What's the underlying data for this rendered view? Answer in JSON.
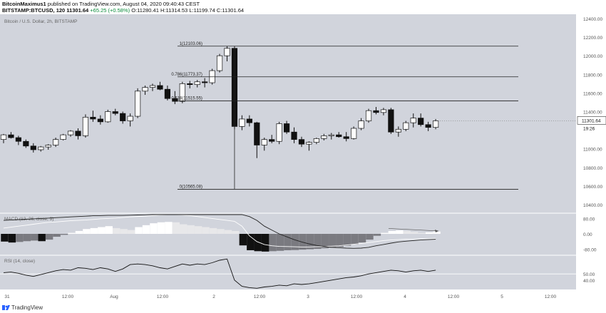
{
  "header": {
    "author": "BitcoinMaximus1",
    "published": "published on TradingView.com, August 04, 2020 09:40:43 CEST",
    "symbol": "BITSTAMP:BTCUSD, 120",
    "last": "11301.64",
    "change": "+65.25 (+0.58%)",
    "ohlc_o_label": "O:",
    "ohlc_o": "11280.41",
    "ohlc_h_label": "H:",
    "ohlc_h": "11314.53",
    "ohlc_l_label": "L:",
    "ohlc_l": "11199.74",
    "ohlc_c_label": "C:",
    "ohlc_c": "11301.64"
  },
  "footer": {
    "brand": "TradingView"
  },
  "chart_data": {
    "type": "candlestick",
    "legend_main": "Bitcoin / U.S. Dollar, 2h, BITSTAMP",
    "last_price_label": "11301.64",
    "countdown_label": "19:26",
    "price_axis": {
      "ticks": [
        "12400.00",
        "12200.00",
        "12000.00",
        "11800.00",
        "11600.00",
        "11400.00",
        "11000.00",
        "10800.00",
        "10600.00",
        "10400.00"
      ],
      "values": [
        12400,
        12200,
        12000,
        11800,
        11600,
        11400,
        11000,
        10800,
        10600,
        10400
      ]
    },
    "time_axis": {
      "ticks": [
        "31",
        "12:00",
        "Aug",
        "12:00",
        "2",
        "12:00",
        "3",
        "12:00",
        "4",
        "12:00",
        "5",
        "12:00"
      ]
    },
    "fib_levels": [
      {
        "label": "1(12103.06)",
        "value": 12103.06
      },
      {
        "label": "0.786(11773.37)",
        "value": 11773.37
      },
      {
        "label": "0.618(11515.55)",
        "value": 11515.55
      },
      {
        "label": "0(10565.08)",
        "value": 10565.08
      }
    ],
    "candles": [
      [
        11100,
        11160,
        11060,
        11150
      ],
      [
        11150,
        11180,
        11110,
        11120
      ],
      [
        11120,
        11140,
        11040,
        11080
      ],
      [
        11080,
        11100,
        11010,
        11030
      ],
      [
        11030,
        11060,
        10960,
        10990
      ],
      [
        10990,
        11030,
        10970,
        11020
      ],
      [
        11020,
        11050,
        10990,
        11040
      ],
      [
        11040,
        11120,
        11020,
        11100
      ],
      [
        11100,
        11160,
        11090,
        11150
      ],
      [
        11150,
        11200,
        11130,
        11190
      ],
      [
        11190,
        11220,
        11100,
        11140
      ],
      [
        11140,
        11370,
        11120,
        11340
      ],
      [
        11340,
        11410,
        11290,
        11320
      ],
      [
        11320,
        11360,
        11260,
        11290
      ],
      [
        11290,
        11420,
        11280,
        11400
      ],
      [
        11400,
        11430,
        11360,
        11380
      ],
      [
        11380,
        11400,
        11270,
        11300
      ],
      [
        11300,
        11380,
        11240,
        11350
      ],
      [
        11350,
        11650,
        11330,
        11620
      ],
      [
        11620,
        11680,
        11580,
        11660
      ],
      [
        11660,
        11700,
        11620,
        11680
      ],
      [
        11680,
        11720,
        11630,
        11640
      ],
      [
        11640,
        11680,
        11520,
        11540
      ],
      [
        11540,
        11620,
        11480,
        11510
      ],
      [
        11510,
        11720,
        11490,
        11700
      ],
      [
        11700,
        11730,
        11650,
        11690
      ],
      [
        11690,
        11740,
        11660,
        11720
      ],
      [
        11720,
        11760,
        11660,
        11710
      ],
      [
        11710,
        11860,
        11690,
        11840
      ],
      [
        11840,
        12020,
        11820,
        12000
      ],
      [
        12000,
        12103,
        11940,
        12080
      ],
      [
        12080,
        12100,
        11210,
        11240
      ],
      [
        11240,
        11360,
        11200,
        11320
      ],
      [
        11320,
        11360,
        11240,
        11280
      ],
      [
        11280,
        11290,
        10900,
        11040
      ],
      [
        11040,
        11120,
        10980,
        11100
      ],
      [
        11100,
        11150,
        11060,
        11080
      ],
      [
        11080,
        11290,
        11050,
        11270
      ],
      [
        11270,
        11300,
        11160,
        11180
      ],
      [
        11180,
        11230,
        11060,
        11100
      ],
      [
        11100,
        11130,
        11020,
        11050
      ],
      [
        11050,
        11080,
        10980,
        11070
      ],
      [
        11070,
        11120,
        11050,
        11110
      ],
      [
        11110,
        11160,
        11090,
        11140
      ],
      [
        11140,
        11170,
        11100,
        11150
      ],
      [
        11150,
        11180,
        11120,
        11130
      ],
      [
        11130,
        11180,
        11080,
        11110
      ],
      [
        11110,
        11240,
        11100,
        11220
      ],
      [
        11220,
        11330,
        11200,
        11300
      ],
      [
        11300,
        11430,
        11280,
        11410
      ],
      [
        11410,
        11450,
        11370,
        11390
      ],
      [
        11390,
        11440,
        11360,
        11420
      ],
      [
        11420,
        11440,
        11160,
        11180
      ],
      [
        11180,
        11240,
        11130,
        11210
      ],
      [
        11210,
        11300,
        11190,
        11280
      ],
      [
        11280,
        11380,
        11230,
        11330
      ],
      [
        11330,
        11380,
        11240,
        11260
      ],
      [
        11260,
        11290,
        11190,
        11230
      ],
      [
        11230,
        11320,
        11210,
        11300
      ]
    ],
    "macd": {
      "label": "MACD (12, 26, close, 9)",
      "ticks": [
        "80.00",
        "0.00",
        "-80.00"
      ],
      "tick_values": [
        80,
        0,
        -80
      ],
      "hist": [
        -40,
        -45,
        -42,
        -38,
        -35,
        -38,
        -30,
        -15,
        -5,
        5,
        15,
        25,
        30,
        35,
        40,
        30,
        25,
        20,
        35,
        45,
        55,
        60,
        62,
        60,
        50,
        45,
        40,
        35,
        30,
        25,
        20,
        15,
        -60,
        -85,
        -90,
        -92,
        -90,
        -88,
        -85,
        -84,
        -82,
        -80,
        -78,
        -75,
        -72,
        -68,
        -62,
        -55,
        -45,
        -30,
        -10,
        5,
        15,
        18,
        15,
        10,
        5,
        8,
        12
      ],
      "macd_line": [
        30,
        35,
        40,
        45,
        50,
        55,
        60,
        62,
        65,
        68,
        70,
        72,
        75,
        78,
        80,
        82,
        85,
        88,
        90,
        92,
        95,
        98,
        100,
        100,
        98,
        95,
        90,
        85,
        80,
        75,
        70,
        65,
        40,
        -10,
        -40,
        -55,
        -62,
        -65,
        -66,
        -67,
        -68,
        -68,
        -67,
        -66,
        -64,
        -62,
        -58,
        -54,
        -50,
        -45,
        -40,
        -35,
        -32,
        -30,
        -28,
        -27,
        -26,
        -25,
        -24
      ],
      "signal_line": [
        70,
        72,
        74,
        76,
        78,
        80,
        82,
        84,
        86,
        88,
        90,
        92,
        94,
        95,
        96,
        96,
        96,
        97,
        98,
        99,
        100,
        100,
        100,
        100,
        100,
        100,
        100,
        100,
        100,
        100,
        100,
        100,
        100,
        90,
        70,
        40,
        20,
        0,
        -15,
        -30,
        -42,
        -52,
        -60,
        -65,
        -70,
        -72,
        -74,
        -75,
        -74,
        -70,
        -62,
        -55,
        -48,
        -42,
        -38,
        -35,
        -32,
        -30,
        -28
      ]
    },
    "rsi": {
      "label": "RSI (14, close)",
      "ticks": [
        "50.00",
        "40.00"
      ],
      "tick_values": [
        50,
        40
      ],
      "values": [
        52,
        53,
        51,
        48,
        46,
        49,
        52,
        55,
        57,
        56,
        60,
        59,
        57,
        60,
        58,
        54,
        58,
        65,
        66,
        65,
        63,
        60,
        58,
        62,
        66,
        64,
        66,
        65,
        68,
        72,
        74,
        40,
        30,
        28,
        27,
        29,
        30,
        32,
        31,
        34,
        33,
        34,
        36,
        38,
        40,
        42,
        44,
        45,
        47,
        50,
        52,
        54,
        56,
        55,
        53,
        55,
        56,
        54,
        56
      ]
    }
  }
}
